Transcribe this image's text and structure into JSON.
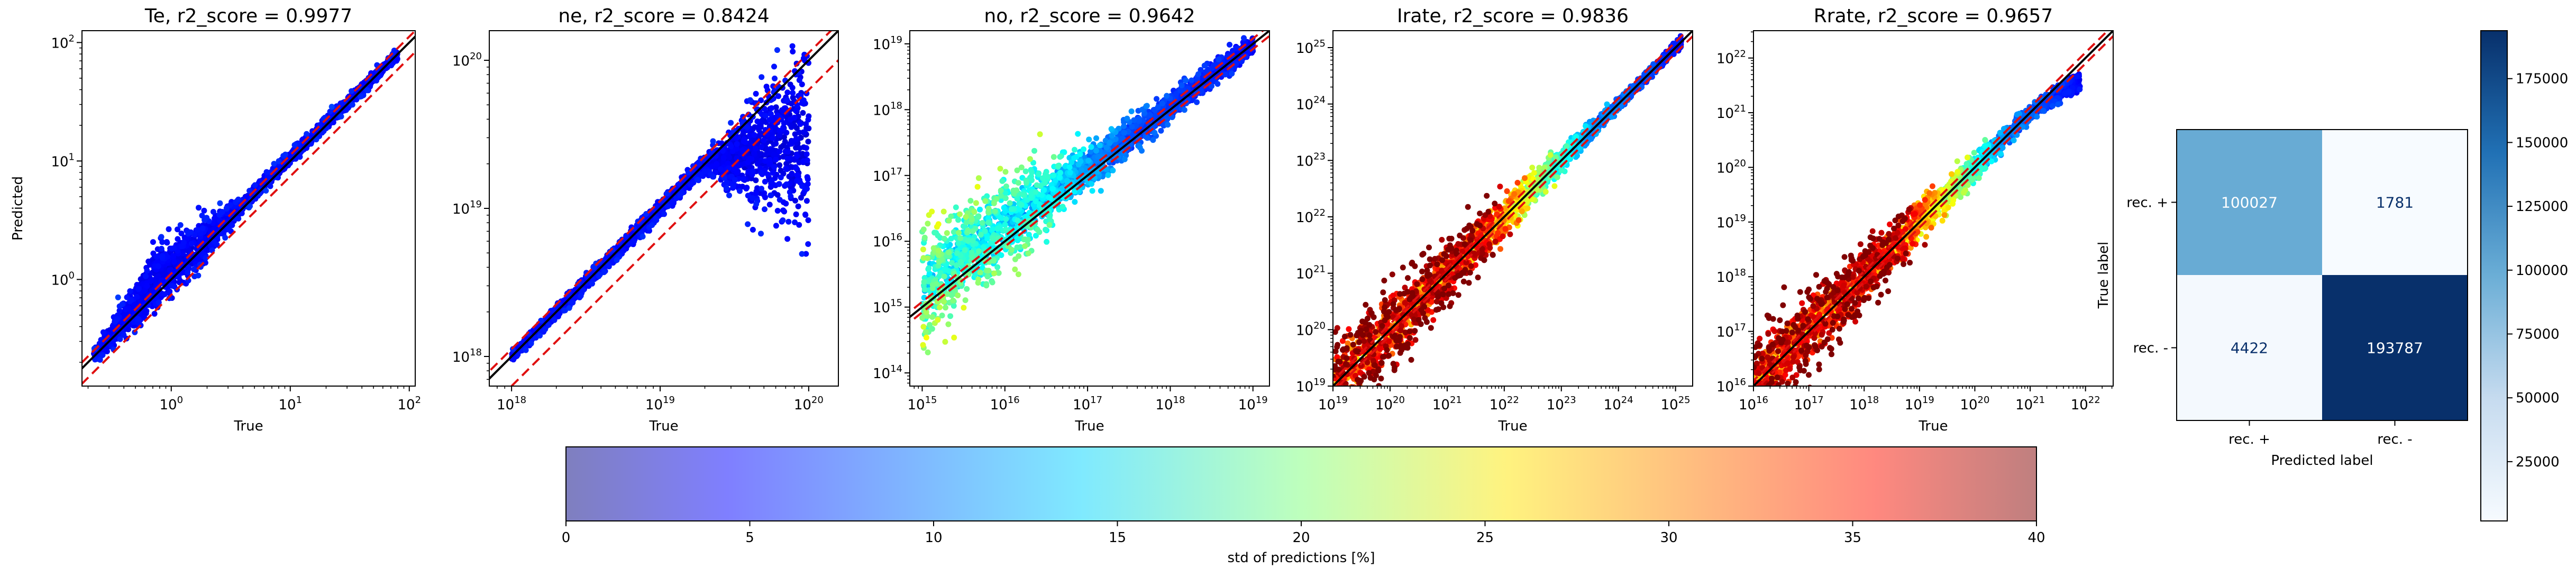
{
  "chart_data": [
    {
      "type": "scatter",
      "id": "te",
      "title": "Te, r2_score = 0.9977",
      "xlabel": "True",
      "ylabel": "Predicted",
      "scale": "log",
      "xlim_exp": [
        -0.75,
        2.05
      ],
      "ylim_exp": [
        -0.9,
        2.1
      ],
      "x_tick_exps": [
        0,
        1,
        2
      ],
      "y_tick_exps": [
        0,
        1,
        2
      ],
      "data_range_exp": [
        -0.65,
        1.9
      ],
      "series": [
        {
          "kind": "identity line",
          "color": "#000000"
        },
        {
          "kind": "upper bound",
          "offset_exp": 0.05,
          "color": "#e01010",
          "style": "dashed"
        },
        {
          "kind": "lower bound",
          "offset_exp": -0.13,
          "color": "#e01010",
          "style": "dashed"
        }
      ],
      "scatter_profile": {
        "spread": [
          [
            -0.65,
            0.05
          ],
          [
            -0.1,
            0.3
          ],
          [
            0.2,
            0.22
          ],
          [
            0.6,
            0.06
          ],
          [
            1.9,
            0.05
          ]
        ],
        "bias": [
          [
            -0.65,
            0
          ],
          [
            -0.1,
            0.12
          ],
          [
            0.2,
            0.05
          ],
          [
            1.9,
            0
          ]
        ],
        "std_pct": [
          [
            -0.65,
            5
          ],
          [
            1.9,
            5
          ]
        ]
      }
    },
    {
      "type": "scatter",
      "id": "ne",
      "title": "ne, r2_score = 0.8424",
      "xlabel": "True",
      "ylabel": "",
      "scale": "log",
      "xlim_exp": [
        17.85,
        20.2
      ],
      "ylim_exp": [
        17.8,
        20.2
      ],
      "x_tick_exps": [
        18,
        19,
        20
      ],
      "y_tick_exps": [
        18,
        19,
        20
      ],
      "data_range_exp": [
        18.0,
        20.0
      ],
      "series": [
        {
          "kind": "identity line",
          "color": "#000000"
        },
        {
          "kind": "upper bound",
          "offset_exp": 0.05,
          "color": "#e01010",
          "style": "dashed"
        },
        {
          "kind": "lower bound",
          "offset_exp": -0.2,
          "color": "#e01010",
          "style": "dashed"
        }
      ],
      "scatter_profile": {
        "spread": [
          [
            18,
            0.04
          ],
          [
            19.3,
            0.06
          ],
          [
            19.55,
            0.3
          ],
          [
            20,
            0.75
          ]
        ],
        "bias": [
          [
            18,
            0
          ],
          [
            19.3,
            0
          ],
          [
            19.55,
            -0.2
          ],
          [
            20,
            -0.5
          ]
        ],
        "std_pct": [
          [
            18,
            5
          ],
          [
            20,
            5
          ]
        ]
      }
    },
    {
      "type": "scatter",
      "id": "no",
      "title": "no, r2_score = 0.9642",
      "xlabel": "True",
      "ylabel": "",
      "scale": "log",
      "xlim_exp": [
        14.85,
        19.2
      ],
      "ylim_exp": [
        13.8,
        19.2
      ],
      "x_tick_exps": [
        15,
        16,
        17,
        18,
        19
      ],
      "y_tick_exps": [
        14,
        15,
        16,
        17,
        18,
        19
      ],
      "data_range_exp": [
        15.0,
        19.0
      ],
      "series": [
        {
          "kind": "identity line",
          "color": "#000000"
        },
        {
          "kind": "upper bound",
          "offset_exp": 0.08,
          "color": "#e01010",
          "style": "dashed"
        },
        {
          "kind": "lower bound",
          "offset_exp": -0.08,
          "color": "#e01010",
          "style": "dashed"
        }
      ],
      "scatter_profile": {
        "spread": [
          [
            15,
            0.9
          ],
          [
            16,
            0.75
          ],
          [
            17,
            0.35
          ],
          [
            18,
            0.2
          ],
          [
            19,
            0.15
          ]
        ],
        "bias": [
          [
            15,
            0.3
          ],
          [
            16,
            0.3
          ],
          [
            17,
            0.1
          ],
          [
            19,
            0
          ]
        ],
        "std_pct": [
          [
            15,
            20
          ],
          [
            16.5,
            16
          ],
          [
            17.5,
            8
          ],
          [
            19,
            5
          ]
        ]
      }
    },
    {
      "type": "scatter",
      "id": "irate",
      "title": "Irate, r2_score = 0.9836",
      "xlabel": "True",
      "ylabel": "",
      "scale": "log",
      "xlim_exp": [
        19,
        25.3
      ],
      "ylim_exp": [
        19,
        25.3
      ],
      "x_tick_exps": [
        19,
        20,
        21,
        22,
        23,
        24,
        25
      ],
      "y_tick_exps": [
        19,
        20,
        21,
        22,
        23,
        24,
        25
      ],
      "data_range_exp": [
        19.0,
        25.1
      ],
      "series": [
        {
          "kind": "identity line",
          "color": "#000000"
        },
        {
          "kind": "upper bound",
          "offset_exp": 0.1,
          "color": "#e01010",
          "style": "dashed"
        },
        {
          "kind": "lower bound",
          "offset_exp": -0.1,
          "color": "#e01010",
          "style": "dashed"
        }
      ],
      "scatter_profile": {
        "spread": [
          [
            19,
            0.9
          ],
          [
            21,
            0.6
          ],
          [
            22.5,
            0.3
          ],
          [
            24,
            0.1
          ],
          [
            25.1,
            0.1
          ]
        ],
        "bias": [
          [
            19,
            0
          ],
          [
            25.1,
            0
          ]
        ],
        "std_pct": [
          [
            19,
            40
          ],
          [
            21.5,
            38
          ],
          [
            22.5,
            22
          ],
          [
            23.5,
            10
          ],
          [
            25.1,
            5
          ]
        ]
      }
    },
    {
      "type": "scatter",
      "id": "rrate",
      "title": "Rrate, r2_score = 0.9657",
      "xlabel": "True",
      "ylabel": "",
      "scale": "log",
      "xlim_exp": [
        16,
        22.5
      ],
      "ylim_exp": [
        16,
        22.5
      ],
      "x_tick_exps": [
        16,
        17,
        18,
        19,
        20,
        21,
        22
      ],
      "y_tick_exps": [
        16,
        17,
        18,
        19,
        20,
        21,
        22
      ],
      "data_range_exp": [
        16.0,
        21.9
      ],
      "series": [
        {
          "kind": "identity line",
          "color": "#000000"
        },
        {
          "kind": "upper bound",
          "offset_exp": 0.1,
          "color": "#e01010",
          "style": "dashed"
        },
        {
          "kind": "lower bound",
          "offset_exp": -0.1,
          "color": "#e01010",
          "style": "dashed"
        }
      ],
      "scatter_profile": {
        "spread": [
          [
            16,
            0.9
          ],
          [
            18,
            0.6
          ],
          [
            19.5,
            0.3
          ],
          [
            21,
            0.15
          ],
          [
            21.9,
            0.2
          ]
        ],
        "bias": [
          [
            16,
            0
          ],
          [
            21,
            0
          ],
          [
            21.9,
            -0.3
          ]
        ],
        "std_pct": [
          [
            16,
            40
          ],
          [
            18.5,
            38
          ],
          [
            19.5,
            22
          ],
          [
            20.5,
            10
          ],
          [
            21.9,
            5
          ]
        ]
      }
    },
    {
      "type": "heatmap",
      "id": "confusion",
      "title": "",
      "xlabel": "Predicted label",
      "ylabel": "True label",
      "x_categories": [
        "rec. +",
        "rec. -"
      ],
      "y_categories": [
        "rec. +",
        "rec. -"
      ],
      "values": [
        [
          100027,
          1781
        ],
        [
          4422,
          193787
        ]
      ],
      "colormap": "Blues",
      "colorbar": {
        "min": 1781,
        "max": 193787,
        "ticks": [
          25000,
          50000,
          75000,
          100000,
          125000,
          150000,
          175000
        ]
      }
    },
    {
      "type": "colorbar",
      "id": "std",
      "label": "std of predictions [%]",
      "min": 0,
      "max": 40,
      "ticks": [
        0,
        5,
        10,
        15,
        20,
        25,
        30,
        35,
        40
      ],
      "colormap": "jet",
      "alpha": 0.5
    }
  ]
}
